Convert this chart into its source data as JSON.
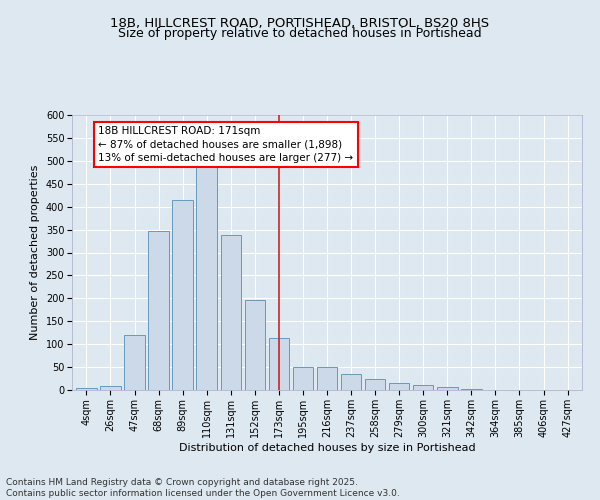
{
  "title_line1": "18B, HILLCREST ROAD, PORTISHEAD, BRISTOL, BS20 8HS",
  "title_line2": "Size of property relative to detached houses in Portishead",
  "xlabel": "Distribution of detached houses by size in Portishead",
  "ylabel": "Number of detached properties",
  "categories": [
    "4sqm",
    "26sqm",
    "47sqm",
    "68sqm",
    "89sqm",
    "110sqm",
    "131sqm",
    "152sqm",
    "173sqm",
    "195sqm",
    "216sqm",
    "237sqm",
    "258sqm",
    "279sqm",
    "300sqm",
    "321sqm",
    "342sqm",
    "364sqm",
    "385sqm",
    "406sqm",
    "427sqm"
  ],
  "values": [
    4,
    8,
    120,
    348,
    415,
    497,
    338,
    197,
    113,
    50,
    50,
    35,
    25,
    16,
    10,
    7,
    2,
    1,
    1,
    1,
    1
  ],
  "bar_color": "#ccd9e8",
  "bar_edge_color": "#6699bb",
  "property_line_index": 8,
  "annotation_title": "18B HILLCREST ROAD: 171sqm",
  "annotation_line2": "← 87% of detached houses are smaller (1,898)",
  "annotation_line3": "13% of semi-detached houses are larger (277) →",
  "vline_color": "#cc2222",
  "ylim": [
    0,
    600
  ],
  "yticks": [
    0,
    50,
    100,
    150,
    200,
    250,
    300,
    350,
    400,
    450,
    500,
    550,
    600
  ],
  "background_color": "#dde8f0",
  "plot_bg_color": "#dde8f0",
  "footer_line1": "Contains HM Land Registry data © Crown copyright and database right 2025.",
  "footer_line2": "Contains public sector information licensed under the Open Government Licence v3.0.",
  "title_fontsize": 9.5,
  "axis_label_fontsize": 8,
  "tick_fontsize": 7,
  "annot_fontsize": 7.5,
  "footer_fontsize": 6.5
}
